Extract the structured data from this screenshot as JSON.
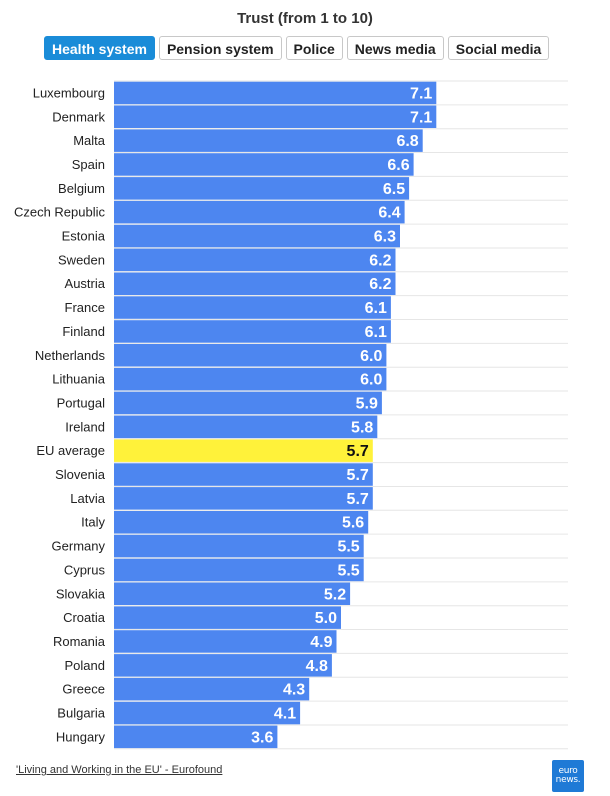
{
  "header": {
    "title": "Trust (from 1 to 10)"
  },
  "tabs": [
    {
      "label": "Health system",
      "active": true
    },
    {
      "label": "Pension system",
      "active": false
    },
    {
      "label": "Police",
      "active": false
    },
    {
      "label": "News media",
      "active": false
    },
    {
      "label": "Social media",
      "active": false
    }
  ],
  "footer": {
    "source": "'Living and Working in the EU' - Eurofound",
    "logo_line1": "euro",
    "logo_line2": "news."
  },
  "colors": {
    "bar": "#4d86f0",
    "highlight": "#fff23a",
    "tab_active": "#1a8cd8",
    "logo": "#1f7ad6"
  },
  "chart_data": {
    "type": "bar",
    "orientation": "horizontal",
    "title": "Trust (from 1 to 10)",
    "xlim": [
      0,
      10
    ],
    "highlight_category": "EU average",
    "grid": true,
    "categories": [
      "Luxembourg",
      "Denmark",
      "Malta",
      "Spain",
      "Belgium",
      "Czech Republic",
      "Estonia",
      "Sweden",
      "Austria",
      "France",
      "Finland",
      "Netherlands",
      "Lithuania",
      "Portugal",
      "Ireland",
      "EU average",
      "Slovenia",
      "Latvia",
      "Italy",
      "Germany",
      "Cyprus",
      "Slovakia",
      "Croatia",
      "Romania",
      "Poland",
      "Greece",
      "Bulgaria",
      "Hungary"
    ],
    "values": [
      7.1,
      7.1,
      6.8,
      6.6,
      6.5,
      6.4,
      6.3,
      6.2,
      6.2,
      6.1,
      6.1,
      6.0,
      6.0,
      5.9,
      5.8,
      5.7,
      5.7,
      5.7,
      5.6,
      5.5,
      5.5,
      5.2,
      5.0,
      4.9,
      4.8,
      4.3,
      4.1,
      3.6
    ],
    "value_labels": [
      "7.1",
      "7.1",
      "6.8",
      "6.6",
      "6.5",
      "6.4",
      "6.3",
      "6.2",
      "6.2",
      "6.1",
      "6.1",
      "6.0",
      "6.0",
      "5.9",
      "5.8",
      "5.7",
      "5.7",
      "5.7",
      "5.6",
      "5.5",
      "5.5",
      "5.2",
      "5.0",
      "4.9",
      "4.8",
      "4.3",
      "4.1",
      "3.6"
    ]
  }
}
